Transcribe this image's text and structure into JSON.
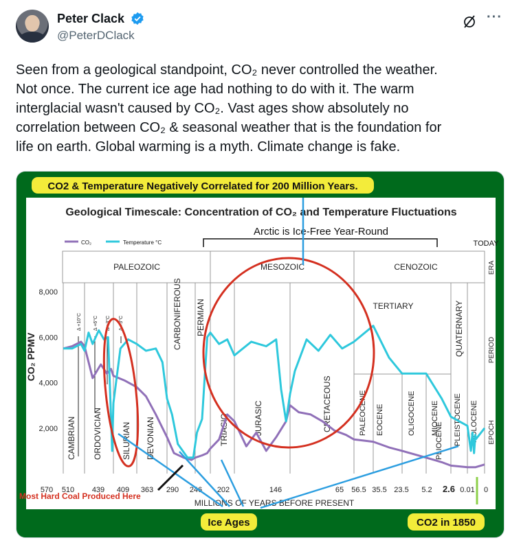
{
  "author": {
    "display_name": "Peter Clack",
    "handle": "@PeterDClack",
    "verified_icon": "verified-badge-icon"
  },
  "header_icons": [
    "grok-slash-icon",
    "more-options-icon"
  ],
  "more_label": "···",
  "tweet": {
    "lines": [
      "Seen from a geological standpoint, CO₂ never controlled the weather.",
      "Not once. The current ice age had nothing to do with it. The warm",
      "interglacial wasn't caused by CO₂. Vast ages show absolutely no",
      "correlation between CO₂ & seasonal weather that is the foundation for",
      "life on earth. Global warming is a myth. Climate change is fake."
    ]
  },
  "colors": {
    "green_band": "#006a1c",
    "yellow_label": "#f3ec3a",
    "co2_line": "#9070b8",
    "temp_line": "#2ec8dc",
    "red_annotation": "#d43020",
    "blue_arrow": "#2c9ee0"
  },
  "chart_data": {
    "type": "line",
    "banner_top": "CO2 & Temperature Negatively Correlated for 200 Million Years.",
    "title": "Geological Timescale: Concentration of CO₂ and Temperature Fluctuations",
    "arctic_label": "Arctic is Ice-Free Year-Round",
    "today_label": "TODAY",
    "legend": [
      {
        "name": "CO₂",
        "color": "#9070b8"
      },
      {
        "name": "Temperature °C",
        "color": "#2ec8dc"
      }
    ],
    "era_label": "ERA",
    "period_label": "PERIOD",
    "epoch_label": "EPOCH",
    "eras": [
      "PALEOZOIC",
      "MESOZOIC",
      "CENOZOIC"
    ],
    "periods": [
      "CAMBRIAN",
      "ORDOVICIAN",
      "SILURIAN",
      "DEVONIAN",
      "CARBONIFEROUS",
      "PERMIAN",
      "TRIASIC",
      "JURASIC",
      "CRETACEOUS",
      "TERTIARY",
      "QUATERNARY"
    ],
    "epochs": [
      "PALEOCENE",
      "EOCENE",
      "OLIGOCENE",
      "MIOCENE",
      "PLIOCENE",
      "PLEISTOCENE",
      "HOLOCENE"
    ],
    "temp_deltas": [
      "Δ +10°C",
      "Δ +6°C",
      "Δ +3°C",
      "Δ +3°C"
    ],
    "ylabel": "CO₂ PPMV",
    "yticks": [
      "8,000",
      "6,000",
      "4,000",
      "2,000"
    ],
    "xticks": [
      "570",
      "510",
      "439",
      "409",
      "363",
      "290",
      "246",
      "202",
      "146",
      "65",
      "56.5",
      "35.5",
      "23.5",
      "5.2",
      "2.6",
      "0.01",
      "0"
    ],
    "xlabel": "MILLIONS OF YEARS BEFORE PRESENT",
    "annotation_coal": "Most Hard Coal Produced Here",
    "annotation_ice": "Ice Ages",
    "annotation_1850": "CO2 in 1850",
    "co2_series": [
      [
        570,
        5500
      ],
      [
        545,
        5600
      ],
      [
        520,
        5800
      ],
      [
        510,
        5600
      ],
      [
        490,
        4200
      ],
      [
        470,
        4800
      ],
      [
        455,
        4400
      ],
      [
        445,
        4600
      ],
      [
        439,
        4300
      ],
      [
        425,
        4100
      ],
      [
        409,
        3800
      ],
      [
        395,
        3400
      ],
      [
        380,
        2600
      ],
      [
        363,
        1600
      ],
      [
        345,
        900
      ],
      [
        320,
        700
      ],
      [
        300,
        600
      ],
      [
        290,
        700
      ],
      [
        270,
        800
      ],
      [
        255,
        900
      ],
      [
        246,
        1100
      ],
      [
        230,
        1500
      ],
      [
        215,
        2600
      ],
      [
        202,
        2300
      ],
      [
        190,
        1200
      ],
      [
        180,
        1800
      ],
      [
        170,
        1000
      ],
      [
        160,
        1600
      ],
      [
        150,
        2300
      ],
      [
        146,
        3000
      ],
      [
        135,
        2700
      ],
      [
        120,
        2600
      ],
      [
        105,
        2300
      ],
      [
        90,
        1900
      ],
      [
        75,
        1700
      ],
      [
        65,
        1500
      ],
      [
        56.5,
        1400
      ],
      [
        45,
        1150
      ],
      [
        35.5,
        1000
      ],
      [
        23.5,
        700
      ],
      [
        12,
        500
      ],
      [
        5.2,
        350
      ],
      [
        2.6,
        280
      ],
      [
        0.01,
        280
      ],
      [
        0,
        400
      ]
    ],
    "temp_series": [
      [
        570,
        5500
      ],
      [
        545,
        5500
      ],
      [
        520,
        5700
      ],
      [
        510,
        5400
      ],
      [
        500,
        6200
      ],
      [
        490,
        5700
      ],
      [
        475,
        6300
      ],
      [
        462,
        5900
      ],
      [
        452,
        6000
      ],
      [
        446,
        3000
      ],
      [
        442,
        1000
      ],
      [
        439,
        3100
      ],
      [
        430,
        5500
      ],
      [
        420,
        5900
      ],
      [
        409,
        5700
      ],
      [
        395,
        5400
      ],
      [
        380,
        5500
      ],
      [
        370,
        4900
      ],
      [
        363,
        3300
      ],
      [
        350,
        2600
      ],
      [
        335,
        1300
      ],
      [
        310,
        700
      ],
      [
        295,
        700
      ],
      [
        285,
        1800
      ],
      [
        270,
        2400
      ],
      [
        255,
        6000
      ],
      [
        246,
        6200
      ],
      [
        230,
        5700
      ],
      [
        215,
        5900
      ],
      [
        202,
        5200
      ],
      [
        185,
        5800
      ],
      [
        170,
        5600
      ],
      [
        160,
        5900
      ],
      [
        155,
        3700
      ],
      [
        150,
        2300
      ],
      [
        146,
        3500
      ],
      [
        140,
        4500
      ],
      [
        125,
        5900
      ],
      [
        110,
        5400
      ],
      [
        95,
        6100
      ],
      [
        80,
        5500
      ],
      [
        65,
        5800
      ],
      [
        56.5,
        6500
      ],
      [
        45,
        5100
      ],
      [
        35.5,
        4400
      ],
      [
        23.5,
        4400
      ],
      [
        12,
        3300
      ],
      [
        5.2,
        2500
      ],
      [
        2.6,
        2100
      ],
      [
        1.5,
        1000
      ],
      [
        1.0,
        1800
      ],
      [
        0.5,
        900
      ],
      [
        0.1,
        1700
      ],
      [
        0.01,
        1500
      ],
      [
        0,
        2000
      ]
    ]
  }
}
